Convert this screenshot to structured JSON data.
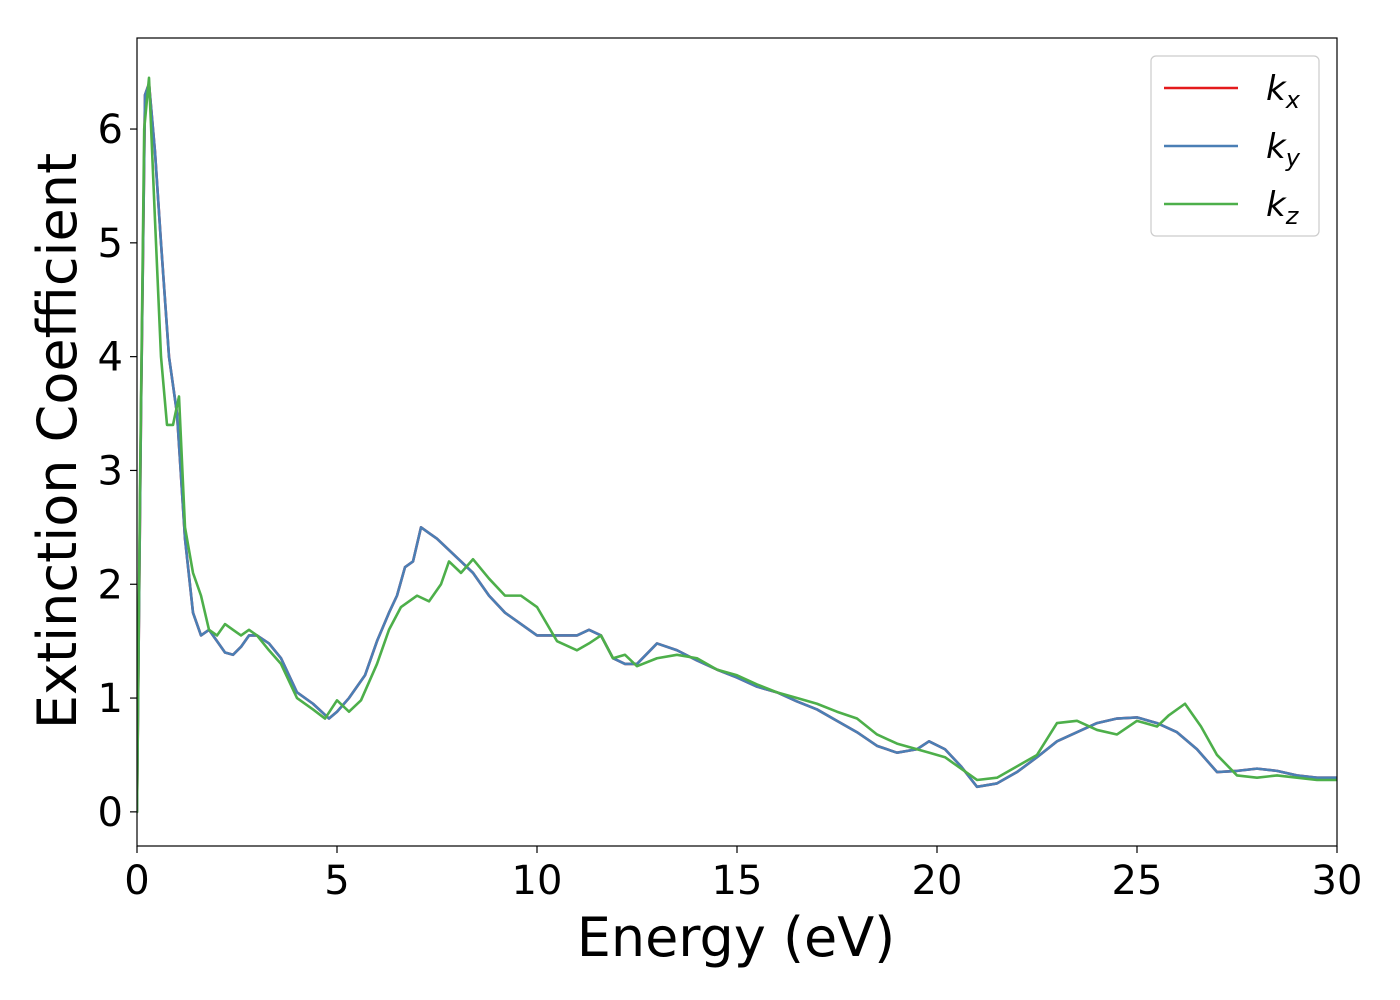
{
  "chart_data": {
    "type": "line",
    "title": "",
    "xlabel": "Energy (eV)",
    "ylabel": "Extinction Coefficient",
    "xlim": [
      0,
      30
    ],
    "ylim": [
      -0.3,
      6.8
    ],
    "xticks": [
      0,
      5,
      10,
      15,
      20,
      25,
      30
    ],
    "yticks": [
      0,
      1,
      2,
      3,
      4,
      5,
      6
    ],
    "xtick_labels": [
      "0",
      "5",
      "10",
      "15",
      "20",
      "25",
      "30"
    ],
    "ytick_labels": [
      "0",
      "1",
      "2",
      "3",
      "4",
      "5",
      "6"
    ],
    "grid": false,
    "legend_position": "top-right",
    "series": [
      {
        "name": "k_x",
        "label_main": "k",
        "label_sub": "x",
        "color": "#e41a1c",
        "x": [
          0,
          0.1,
          0.2,
          0.3,
          0.45,
          0.6,
          0.8,
          1.0,
          1.2,
          1.4,
          1.6,
          1.8,
          2.0,
          2.2,
          2.4,
          2.6,
          2.8,
          3.0,
          3.3,
          3.6,
          4.0,
          4.4,
          4.8,
          5.0,
          5.3,
          5.7,
          6.0,
          6.3,
          6.5,
          6.7,
          6.9,
          7.1,
          7.3,
          7.5,
          7.8,
          8.1,
          8.4,
          8.8,
          9.2,
          9.6,
          10.0,
          10.5,
          11.0,
          11.3,
          11.6,
          11.9,
          12.2,
          12.5,
          13.0,
          13.5,
          14.0,
          14.5,
          15.0,
          15.5,
          16.0,
          16.5,
          17.0,
          17.5,
          18.0,
          18.5,
          19.0,
          19.5,
          19.8,
          20.2,
          20.6,
          21.0,
          21.5,
          22.0,
          22.5,
          23.0,
          23.5,
          24.0,
          24.5,
          25.0,
          25.5,
          26.0,
          26.5,
          27.0,
          27.5,
          28.0,
          28.5,
          29.0,
          29.5,
          30.0
        ],
        "y": [
          0.0,
          3.5,
          6.3,
          6.4,
          5.8,
          5.0,
          4.0,
          3.5,
          2.4,
          1.75,
          1.55,
          1.6,
          1.5,
          1.4,
          1.38,
          1.45,
          1.55,
          1.55,
          1.48,
          1.35,
          1.05,
          0.95,
          0.82,
          0.88,
          1.0,
          1.2,
          1.5,
          1.75,
          1.9,
          2.15,
          2.2,
          2.5,
          2.45,
          2.4,
          2.3,
          2.2,
          2.1,
          1.9,
          1.75,
          1.65,
          1.55,
          1.55,
          1.55,
          1.6,
          1.55,
          1.35,
          1.3,
          1.3,
          1.48,
          1.42,
          1.33,
          1.25,
          1.18,
          1.1,
          1.05,
          0.97,
          0.9,
          0.8,
          0.7,
          0.58,
          0.52,
          0.55,
          0.62,
          0.55,
          0.4,
          0.22,
          0.25,
          0.35,
          0.48,
          0.62,
          0.7,
          0.78,
          0.82,
          0.83,
          0.78,
          0.7,
          0.55,
          0.35,
          0.36,
          0.38,
          0.36,
          0.32,
          0.3,
          0.3
        ]
      },
      {
        "name": "k_y",
        "label_main": "k",
        "label_sub": "y",
        "color": "#4a7fb5",
        "x": [
          0,
          0.1,
          0.2,
          0.3,
          0.45,
          0.6,
          0.8,
          1.0,
          1.2,
          1.4,
          1.6,
          1.8,
          2.0,
          2.2,
          2.4,
          2.6,
          2.8,
          3.0,
          3.3,
          3.6,
          4.0,
          4.4,
          4.8,
          5.0,
          5.3,
          5.7,
          6.0,
          6.3,
          6.5,
          6.7,
          6.9,
          7.1,
          7.3,
          7.5,
          7.8,
          8.1,
          8.4,
          8.8,
          9.2,
          9.6,
          10.0,
          10.5,
          11.0,
          11.3,
          11.6,
          11.9,
          12.2,
          12.5,
          13.0,
          13.5,
          14.0,
          14.5,
          15.0,
          15.5,
          16.0,
          16.5,
          17.0,
          17.5,
          18.0,
          18.5,
          19.0,
          19.5,
          19.8,
          20.2,
          20.6,
          21.0,
          21.5,
          22.0,
          22.5,
          23.0,
          23.5,
          24.0,
          24.5,
          25.0,
          25.5,
          26.0,
          26.5,
          27.0,
          27.5,
          28.0,
          28.5,
          29.0,
          29.5,
          30.0
        ],
        "y": [
          0.0,
          3.5,
          6.3,
          6.4,
          5.8,
          5.0,
          4.0,
          3.5,
          2.4,
          1.75,
          1.55,
          1.6,
          1.5,
          1.4,
          1.38,
          1.45,
          1.55,
          1.55,
          1.48,
          1.35,
          1.05,
          0.95,
          0.82,
          0.88,
          1.0,
          1.2,
          1.5,
          1.75,
          1.9,
          2.15,
          2.2,
          2.5,
          2.45,
          2.4,
          2.3,
          2.2,
          2.1,
          1.9,
          1.75,
          1.65,
          1.55,
          1.55,
          1.55,
          1.6,
          1.55,
          1.35,
          1.3,
          1.3,
          1.48,
          1.42,
          1.33,
          1.25,
          1.18,
          1.1,
          1.05,
          0.97,
          0.9,
          0.8,
          0.7,
          0.58,
          0.52,
          0.55,
          0.62,
          0.55,
          0.4,
          0.22,
          0.25,
          0.35,
          0.48,
          0.62,
          0.7,
          0.78,
          0.82,
          0.83,
          0.78,
          0.7,
          0.55,
          0.35,
          0.36,
          0.38,
          0.36,
          0.32,
          0.3,
          0.3
        ]
      },
      {
        "name": "k_z",
        "label_main": "k",
        "label_sub": "z",
        "color": "#4daf4a",
        "x": [
          0,
          0.08,
          0.18,
          0.3,
          0.45,
          0.6,
          0.75,
          0.9,
          1.05,
          1.2,
          1.4,
          1.6,
          1.8,
          2.0,
          2.2,
          2.4,
          2.6,
          2.8,
          3.0,
          3.3,
          3.6,
          4.0,
          4.4,
          4.7,
          5.0,
          5.3,
          5.6,
          6.0,
          6.3,
          6.6,
          7.0,
          7.3,
          7.6,
          7.8,
          8.1,
          8.4,
          8.8,
          9.2,
          9.6,
          10.0,
          10.5,
          11.0,
          11.3,
          11.6,
          11.9,
          12.2,
          12.5,
          13.0,
          13.5,
          14.0,
          14.5,
          15.0,
          15.5,
          16.0,
          16.5,
          17.0,
          17.5,
          18.0,
          18.5,
          19.0,
          19.5,
          19.8,
          20.2,
          20.6,
          21.0,
          21.5,
          22.0,
          22.5,
          23.0,
          23.5,
          24.0,
          24.5,
          25.0,
          25.5,
          25.8,
          26.2,
          26.6,
          27.0,
          27.5,
          28.0,
          28.5,
          29.0,
          29.5,
          30.0
        ],
        "y": [
          0.0,
          3.0,
          6.0,
          6.45,
          5.2,
          4.0,
          3.4,
          3.4,
          3.65,
          2.5,
          2.1,
          1.9,
          1.6,
          1.55,
          1.65,
          1.6,
          1.55,
          1.6,
          1.55,
          1.42,
          1.3,
          1.0,
          0.9,
          0.82,
          0.98,
          0.88,
          0.98,
          1.3,
          1.6,
          1.8,
          1.9,
          1.85,
          2.0,
          2.2,
          2.1,
          2.22,
          2.05,
          1.9,
          1.9,
          1.8,
          1.5,
          1.42,
          1.48,
          1.55,
          1.35,
          1.38,
          1.28,
          1.35,
          1.38,
          1.35,
          1.25,
          1.2,
          1.12,
          1.05,
          1.0,
          0.95,
          0.88,
          0.82,
          0.68,
          0.6,
          0.55,
          0.52,
          0.48,
          0.38,
          0.28,
          0.3,
          0.4,
          0.5,
          0.78,
          0.8,
          0.72,
          0.68,
          0.8,
          0.75,
          0.85,
          0.95,
          0.75,
          0.5,
          0.32,
          0.3,
          0.32,
          0.3,
          0.28,
          0.28
        ]
      }
    ]
  }
}
